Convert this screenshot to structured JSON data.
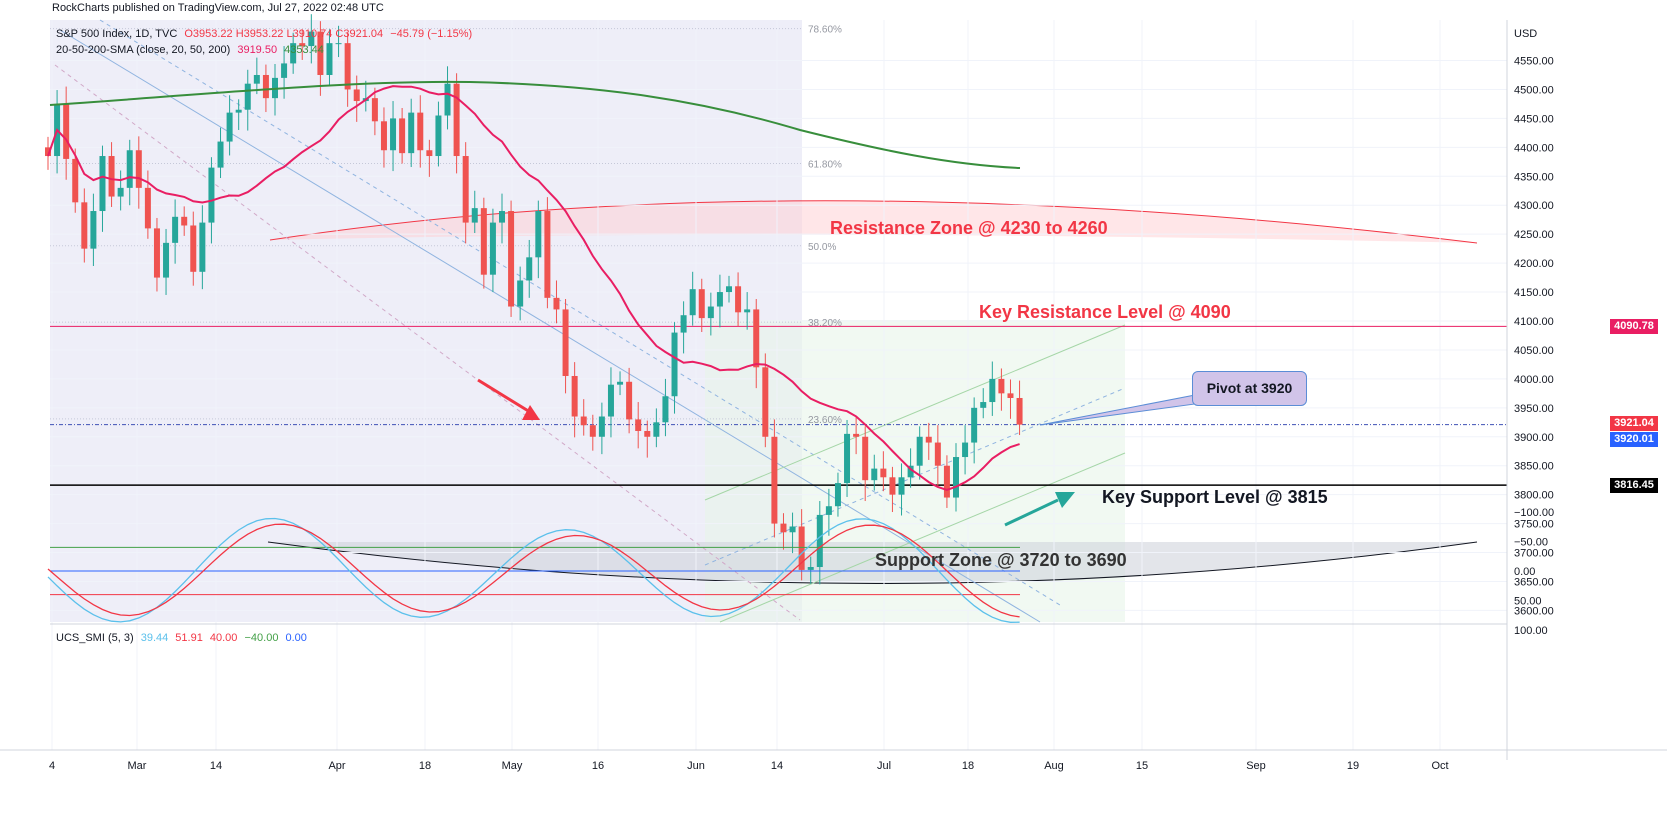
{
  "header": {
    "published": "RockCharts published on TradingView.com, Jul 27, 2022 02:48 UTC"
  },
  "legend": {
    "symbol": "S&P 500 Index, 1D, TVC",
    "ohlc": "O3953.22  H3953.22  L3910.74  C3921.04",
    "change": "−45.79 (−1.15%)",
    "sma_label": "20-50-200-SMA (close, 20, 50, 200)",
    "sma_values": [
      "3919.50",
      "4353.44"
    ]
  },
  "indicator_legend": {
    "label": "UCS_SMI (5, 3)",
    "values": [
      "39.44",
      "51.91",
      "40.00",
      "−40.00",
      "0.00"
    ]
  },
  "annotations": {
    "resistance_zone": "Resistance Zone @ 4230 to 4260",
    "key_resistance": "Key Resistance Level @ 4090",
    "pivot": "Pivot at 3920",
    "key_support": "Key Support Level @ 3815",
    "support_zone": "Support Zone @ 3720 to 3690"
  },
  "fib_levels": [
    {
      "label": "78.60%",
      "value": 4605
    },
    {
      "label": "61.80%",
      "value": 4372
    },
    {
      "label": "50.0%",
      "value": 4230
    },
    {
      "label": "38.20%",
      "value": 4098
    },
    {
      "label": "23.60%",
      "value": 3931
    }
  ],
  "price_tags": [
    {
      "label": "4090.78",
      "value": 4090.78,
      "color": "#e91e63"
    },
    {
      "label": "3921.04",
      "value": 3921.04,
      "color": "#f23645"
    },
    {
      "label": "3920.01",
      "value": 3920.01,
      "color": "#2962ff"
    },
    {
      "label": "3816.45",
      "value": 3816.45,
      "color": "#000000"
    }
  ],
  "colors": {
    "up": "#26a69a",
    "down": "#ef5350",
    "sma50": "#e91e63",
    "sma200": "#388e3c",
    "smi_fast": "#5bc0eb",
    "smi_slow": "#f23645"
  },
  "chart_data": {
    "type": "candlestick",
    "y_unit": "USD",
    "ylim": [
      3580,
      4620
    ],
    "y_ticks": [
      3600,
      3650,
      3700,
      3750,
      3800,
      3850,
      3900,
      3950,
      4000,
      4050,
      4100,
      4150,
      4200,
      4250,
      4300,
      4350,
      4400,
      4450,
      4500,
      4550
    ],
    "x_ticks": [
      "4",
      "Mar",
      "14",
      "Apr",
      "18",
      "May",
      "16",
      "Jun",
      "14",
      "Jul",
      "18",
      "Aug",
      "15",
      "Sep",
      "19",
      "Oct"
    ],
    "closes": [
      4385,
      4475,
      4380,
      4305,
      4225,
      4290,
      4385,
      4315,
      4330,
      4395,
      4330,
      4260,
      4175,
      4235,
      4280,
      4265,
      4185,
      4270,
      4365,
      4410,
      4460,
      4465,
      4510,
      4525,
      4485,
      4520,
      4545,
      4580,
      4575,
      4600,
      4525,
      4580,
      4580,
      4500,
      4480,
      4485,
      4445,
      4395,
      4450,
      4390,
      4460,
      4395,
      4385,
      4455,
      4510,
      4385,
      4270,
      4295,
      4180,
      4270,
      4290,
      4125,
      4170,
      4210,
      4290,
      4140,
      4120,
      4005,
      3935,
      3920,
      3900,
      3935,
      3990,
      3995,
      3930,
      3910,
      3900,
      3925,
      3970,
      4080,
      4110,
      4155,
      4105,
      4125,
      4150,
      4160,
      4115,
      4120,
      4020,
      3900,
      3750,
      3735,
      3745,
      3670,
      3675,
      3765,
      3780,
      3820,
      3905,
      3900,
      3825,
      3845,
      3830,
      3800,
      3830,
      3850,
      3900,
      3890,
      3850,
      3795,
      3865,
      3890,
      3950,
      3960,
      4000,
      3975,
      3967,
      3921
    ],
    "sma20_label": "3919.50",
    "sma200_label": "4353.44",
    "smi_levels": [
      40,
      0,
      -40
    ],
    "smi_ylim": [
      -100,
      100
    ],
    "smi_ticks": [
      100,
      50,
      0,
      -50,
      -100
    ]
  }
}
